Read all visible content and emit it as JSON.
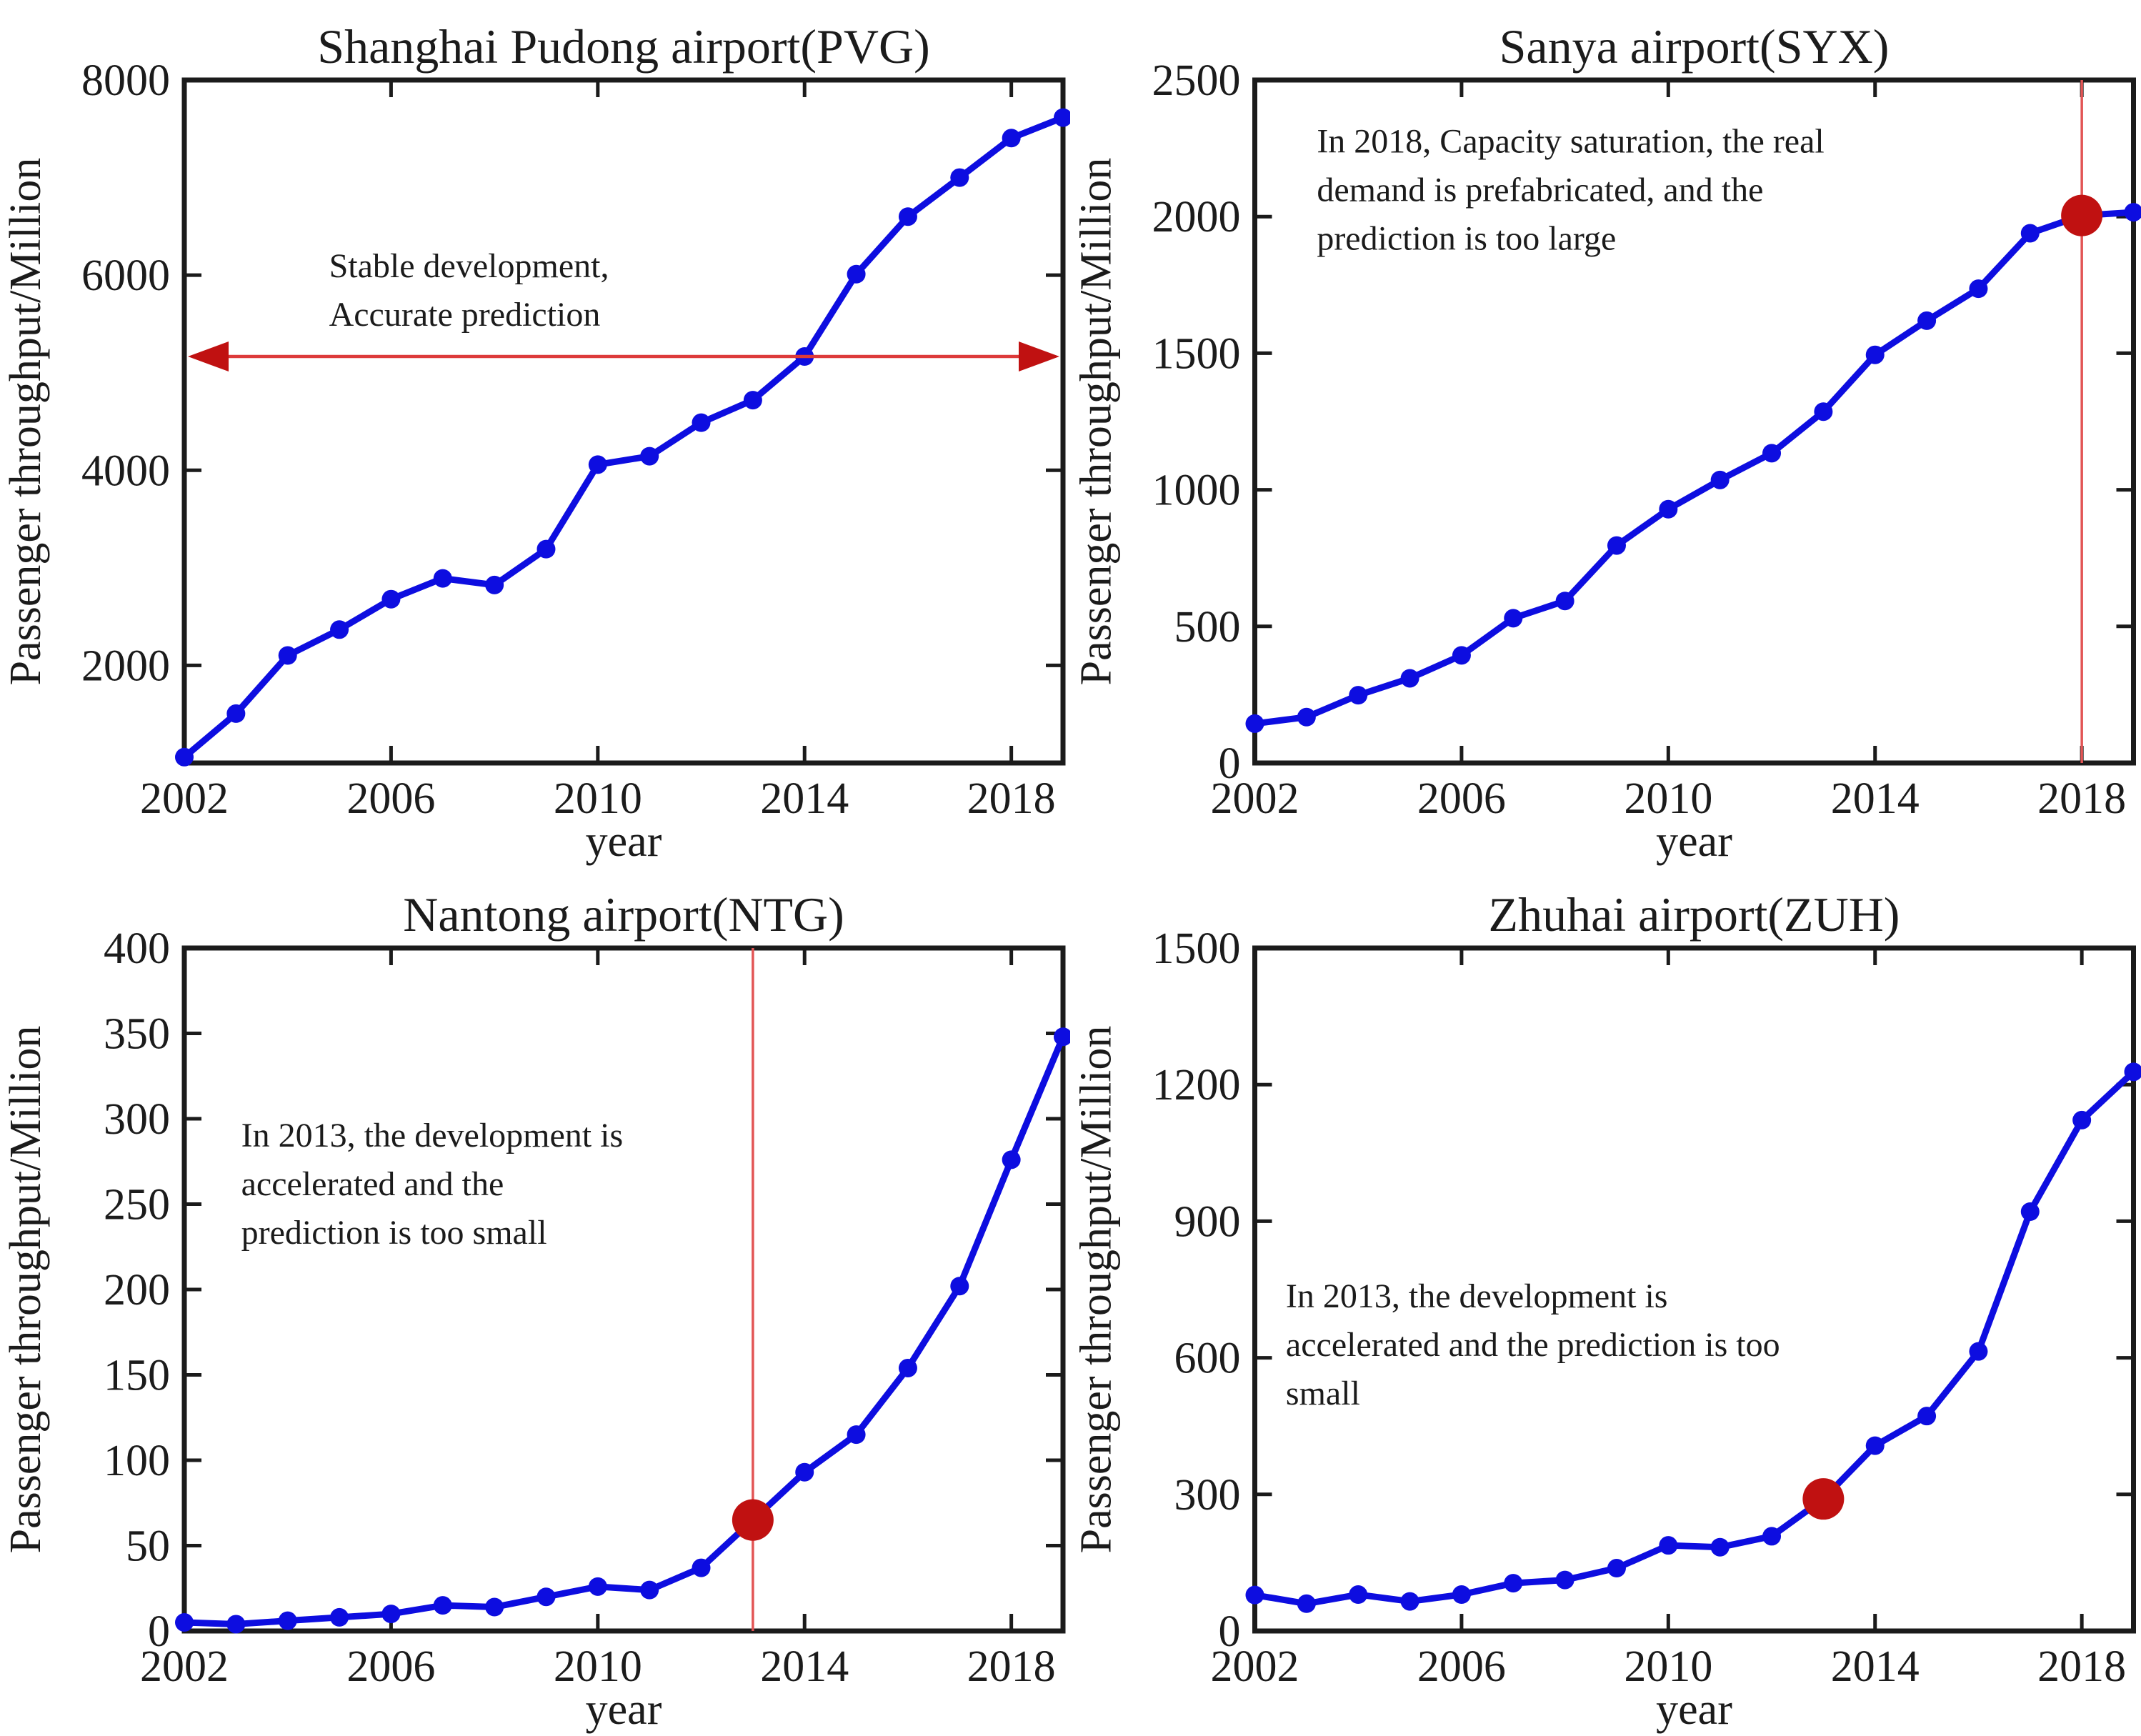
{
  "figure": {
    "background": "#ffffff",
    "rows": 2,
    "cols": 2
  },
  "colors": {
    "line_blue": "#0d0de0",
    "axis_black": "#1b1b1b",
    "red_thin": "#e25555",
    "red_arrow_line": "#dd3a3a",
    "red_dark": "#c01111",
    "text": "#1b1b1b"
  },
  "chart_data": [
    {
      "id": "pvg",
      "type": "line",
      "title": "Shanghai Pudong airport(PVG)",
      "xlabel": "year",
      "ylabel": "Passenger throughput/Million",
      "legend": null,
      "grid": false,
      "x": [
        2002,
        2003,
        2004,
        2005,
        2006,
        2007,
        2008,
        2009,
        2010,
        2011,
        2012,
        2013,
        2014,
        2015,
        2016,
        2017,
        2018,
        2019
      ],
      "values": [
        1060,
        1506,
        2102,
        2367,
        2679,
        2892,
        2824,
        3192,
        4058,
        4144,
        4488,
        4719,
        5166,
        6010,
        6600,
        7000,
        7405,
        7615
      ],
      "xlim": [
        2002,
        2019
      ],
      "ylim": [
        1000,
        8000
      ],
      "xticks": [
        2002,
        2006,
        2010,
        2014,
        2018
      ],
      "yticks": [
        2000,
        4000,
        6000,
        8000
      ],
      "annotation": {
        "lines": [
          "Stable development,",
          "Accurate prediction"
        ],
        "x": 2004.8,
        "y": 6300
      },
      "highlight": {
        "harrow_y": 5166,
        "vline_x": null,
        "dot": null
      }
    },
    {
      "id": "syx",
      "type": "line",
      "title": "Sanya airport(SYX)",
      "xlabel": "year",
      "ylabel": "Passenger throughput/Million",
      "legend": null,
      "grid": false,
      "x": [
        2002,
        2003,
        2004,
        2005,
        2006,
        2007,
        2008,
        2009,
        2010,
        2011,
        2012,
        2013,
        2014,
        2015,
        2016,
        2017,
        2018,
        2019
      ],
      "values": [
        144,
        168,
        248,
        310,
        394,
        530,
        593,
        796,
        929,
        1036,
        1134,
        1286,
        1494,
        1619,
        1736,
        1939,
        2004,
        2016
      ],
      "xlim": [
        2002,
        2019
      ],
      "ylim": [
        0,
        2500
      ],
      "xticks": [
        2002,
        2006,
        2010,
        2014,
        2018
      ],
      "yticks": [
        0,
        500,
        1000,
        1500,
        2000,
        2500
      ],
      "annotation": {
        "lines": [
          "In 2018, Capacity saturation, the real",
          "demand is prefabricated, and the",
          "prediction is too large"
        ],
        "x": 2003.2,
        "y": 2350
      },
      "highlight": {
        "harrow_y": null,
        "vline_x": 2018,
        "dot": {
          "x": 2018,
          "y": 2004
        }
      }
    },
    {
      "id": "ntg",
      "type": "line",
      "title": "Nantong airport(NTG)",
      "xlabel": "year",
      "ylabel": "Passenger throughput/Million",
      "legend": null,
      "grid": false,
      "x": [
        2002,
        2003,
        2004,
        2005,
        2006,
        2007,
        2008,
        2009,
        2010,
        2011,
        2012,
        2013,
        2014,
        2015,
        2016,
        2017,
        2018,
        2019
      ],
      "values": [
        5,
        4,
        6,
        8,
        10,
        15,
        14,
        20,
        26,
        24,
        37,
        65,
        93,
        115,
        154,
        202,
        276,
        348
      ],
      "xlim": [
        2002,
        2019
      ],
      "ylim": [
        0,
        400
      ],
      "xticks": [
        2002,
        2006,
        2010,
        2014,
        2018
      ],
      "yticks": [
        0,
        50,
        100,
        150,
        200,
        250,
        300,
        350,
        400
      ],
      "annotation": {
        "lines": [
          "In 2013, the development is",
          "accelerated and the",
          "prediction is too small"
        ],
        "x": 2003.1,
        "y": 302
      },
      "highlight": {
        "harrow_y": null,
        "vline_x": 2013,
        "dot": {
          "x": 2013,
          "y": 65
        }
      }
    },
    {
      "id": "zuh",
      "type": "line",
      "title": "Zhuhai airport(ZUH)",
      "xlabel": "year",
      "ylabel": "Passenger throughput/Million",
      "legend": null,
      "grid": false,
      "x": [
        2002,
        2003,
        2004,
        2005,
        2006,
        2007,
        2008,
        2009,
        2010,
        2011,
        2012,
        2013,
        2014,
        2015,
        2016,
        2017,
        2018,
        2019
      ],
      "values": [
        79,
        60,
        80,
        65,
        80,
        105,
        112,
        138,
        188,
        184,
        208,
        290,
        407,
        472,
        614,
        921,
        1122,
        1228
      ],
      "xlim": [
        2002,
        2019
      ],
      "ylim": [
        0,
        1500
      ],
      "xticks": [
        2002,
        2006,
        2010,
        2014,
        2018
      ],
      "yticks": [
        0,
        300,
        600,
        900,
        1200,
        1500
      ],
      "annotation": {
        "lines": [
          "In 2013, the development is",
          "accelerated and the prediction is too",
          "small"
        ],
        "x": 2002.6,
        "y": 780
      },
      "highlight": {
        "harrow_y": null,
        "vline_x": null,
        "dot": {
          "x": 2013,
          "y": 290
        }
      }
    }
  ]
}
